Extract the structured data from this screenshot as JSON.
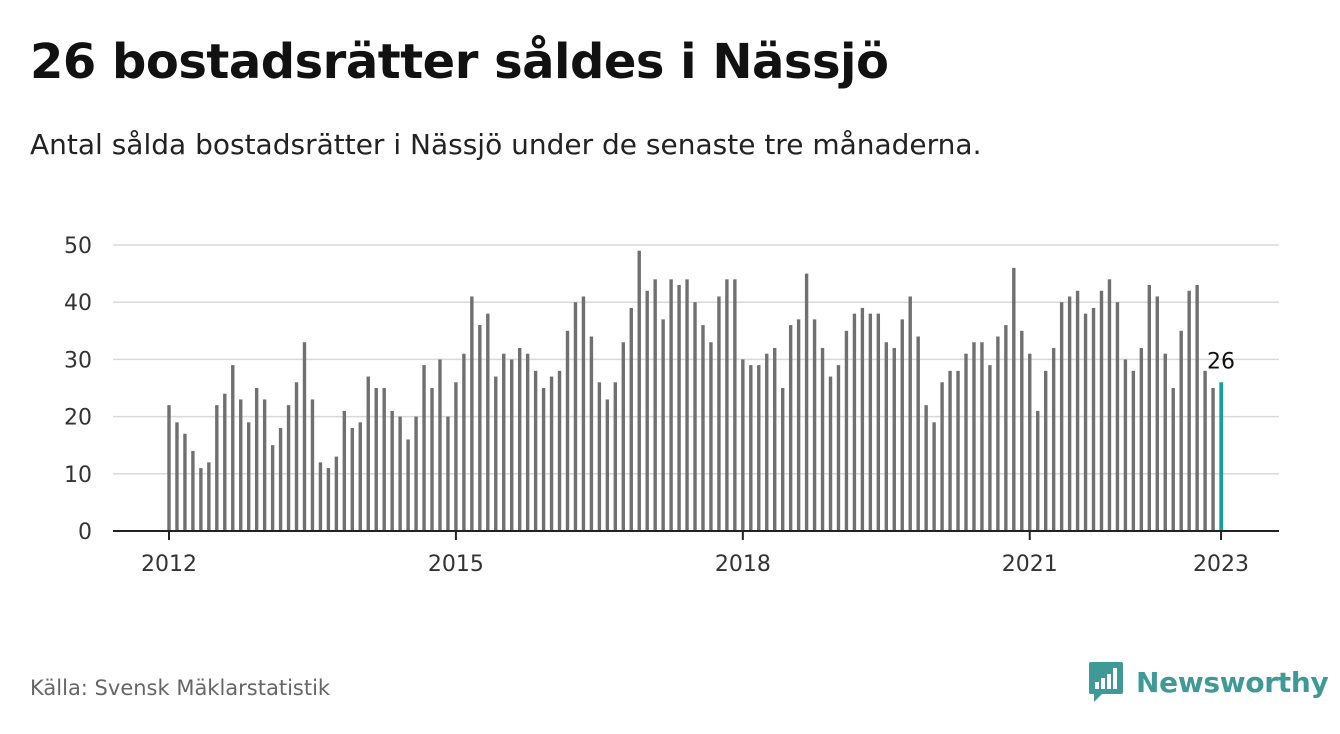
{
  "title": "26 bostadsrätter såldes i Nässjö",
  "subtitle": "Antal sålda bostadsrätter i Nässjö under de senaste tre månaderna.",
  "source": "Källa: Svensk Mäklarstatistik",
  "logo": {
    "text": "Newsworthy",
    "icon": "newsworthy-chart-bubble-icon"
  },
  "colors": {
    "bar": "#707070",
    "highlight": "#1a9d96",
    "grid": "#d9d9d9",
    "axis": "#222222",
    "brand": "#3f9a97"
  },
  "chart_data": {
    "type": "bar",
    "title": "26 bostadsrätter såldes i Nässjö",
    "ylim": [
      0,
      50
    ],
    "yticks": [
      0,
      10,
      20,
      30,
      40,
      50
    ],
    "xticks": [
      {
        "label": "2012",
        "index": 0
      },
      {
        "label": "2015",
        "index": 36
      },
      {
        "label": "2018",
        "index": 72
      },
      {
        "label": "2021",
        "index": 108
      },
      {
        "label": "2023",
        "index": 132
      }
    ],
    "grid": true,
    "highlight_label": "26",
    "highlight_index": 132,
    "values": [
      22,
      19,
      17,
      14,
      11,
      12,
      22,
      24,
      29,
      23,
      19,
      25,
      23,
      15,
      18,
      22,
      26,
      33,
      23,
      12,
      11,
      13,
      21,
      18,
      19,
      27,
      25,
      25,
      21,
      20,
      16,
      20,
      29,
      25,
      30,
      20,
      26,
      31,
      41,
      36,
      38,
      27,
      31,
      30,
      32,
      31,
      28,
      25,
      27,
      28,
      35,
      40,
      41,
      34,
      26,
      23,
      26,
      33,
      39,
      49,
      42,
      44,
      37,
      44,
      43,
      44,
      40,
      36,
      33,
      41,
      44,
      44,
      30,
      29,
      29,
      31,
      32,
      25,
      36,
      37,
      45,
      37,
      32,
      27,
      29,
      35,
      38,
      39,
      38,
      38,
      33,
      32,
      37,
      41,
      34,
      22,
      19,
      26,
      28,
      28,
      31,
      33,
      33,
      29,
      34,
      36,
      46,
      35,
      31,
      21,
      28,
      32,
      40,
      41,
      42,
      38,
      39,
      42,
      44,
      40,
      30,
      28,
      32,
      43,
      41,
      31,
      25,
      35,
      42,
      43,
      28,
      25,
      26
    ]
  }
}
